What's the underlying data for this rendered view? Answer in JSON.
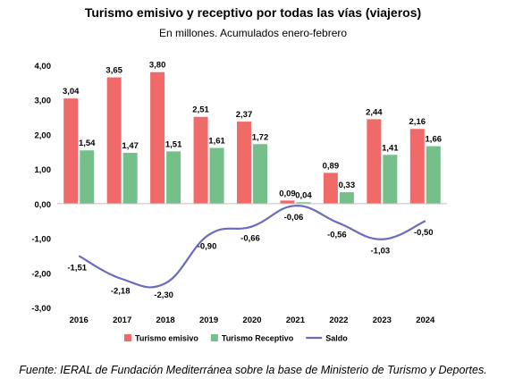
{
  "chart_data": {
    "type": "bar",
    "title": "Turismo emisivo y receptivo por todas las vías (viajeros)",
    "subtitle": "En millones. Acumulados enero-febrero",
    "categories": [
      "2016",
      "2017",
      "2018",
      "2019",
      "2020",
      "2021",
      "2022",
      "2023",
      "2024"
    ],
    "series": [
      {
        "name": "Turismo emisivo",
        "type": "bar",
        "color": "#f06a6a",
        "values": [
          3.04,
          3.65,
          3.8,
          2.51,
          2.37,
          0.09,
          0.89,
          2.44,
          2.16
        ],
        "labels": [
          "3,04",
          "3,65",
          "3,80",
          "2,51",
          "2,37",
          "0,09",
          "0,89",
          "2,44",
          "2,16"
        ]
      },
      {
        "name": "Turismo Receptivo",
        "type": "bar",
        "color": "#74bf8a",
        "values": [
          1.54,
          1.47,
          1.51,
          1.61,
          1.72,
          0.04,
          0.33,
          1.41,
          1.66
        ],
        "labels": [
          "1,54",
          "1,47",
          "1,51",
          "1,61",
          "1,72",
          "0,04",
          "0,33",
          "1,41",
          "1,66"
        ]
      },
      {
        "name": "Saldo",
        "type": "line",
        "color": "#6b6bbf",
        "values": [
          -1.51,
          -2.18,
          -2.3,
          -0.9,
          -0.66,
          -0.06,
          -0.56,
          -1.03,
          -0.5
        ],
        "labels": [
          "-1,51",
          "-2,18",
          "-2,30",
          "-0,90",
          "-0,66",
          "-0,06",
          "-0,56",
          "-1,03",
          "-0,50"
        ]
      }
    ],
    "ylim": [
      -3,
      4
    ],
    "yticks": [
      4,
      3,
      2,
      1,
      0,
      -1,
      -2,
      -3
    ],
    "ytick_labels": [
      "4,00",
      "3,00",
      "2,00",
      "1,00",
      "0,00",
      "-1,00",
      "-2,00",
      "-3,00"
    ],
    "legend_position": "bottom",
    "grid": false
  },
  "source": "Fuente: IERAL de Fundación Mediterránea sobre la base de Ministerio de Turismo y Deportes."
}
